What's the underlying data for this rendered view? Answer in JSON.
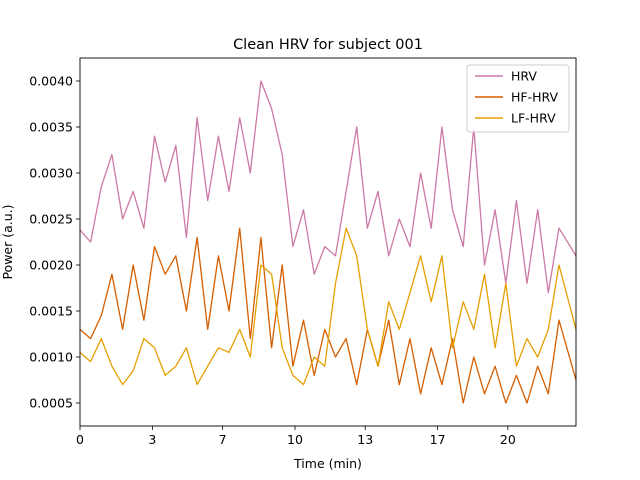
{
  "chart_data": {
    "type": "line",
    "title": "Clean HRV for subject 001",
    "xlabel": "Time (min)",
    "ylabel": "Power (a.u.)",
    "xlim": [
      0,
      23.3
    ],
    "ylim": [
      0.00025,
      0.00425
    ],
    "x_ticks": [
      0,
      3.4,
      6.7,
      10.1,
      13.4,
      16.8,
      20.1
    ],
    "x_tick_labels": [
      "0",
      "3",
      "7",
      "10",
      "13",
      "17",
      "20"
    ],
    "y_ticks": [
      0.0005,
      0.001,
      0.0015,
      0.002,
      0.0025,
      0.003,
      0.0035,
      0.004
    ],
    "y_tick_labels": [
      "0.0005",
      "0.0010",
      "0.0015",
      "0.0020",
      "0.0025",
      "0.0030",
      "0.0035",
      "0.0040"
    ],
    "grid": false,
    "legend_position": "top-right",
    "x": [
      0,
      0.5,
      1,
      1.5,
      2,
      2.5,
      3,
      3.5,
      4,
      4.5,
      5,
      5.5,
      6,
      6.5,
      7,
      7.5,
      8,
      8.5,
      9,
      9.5,
      10,
      10.5,
      11,
      11.5,
      12,
      12.5,
      13,
      13.5,
      14,
      14.5,
      15,
      15.5,
      16,
      16.5,
      17,
      17.5,
      18,
      18.5,
      19,
      19.5,
      20,
      20.5,
      21,
      21.5,
      22,
      22.5,
      23.3
    ],
    "series": [
      {
        "name": "HRV",
        "color": "#cc79a7",
        "values": [
          0.00238,
          0.00225,
          0.00285,
          0.0032,
          0.0025,
          0.0028,
          0.0024,
          0.0034,
          0.0029,
          0.0033,
          0.0023,
          0.0036,
          0.0027,
          0.0034,
          0.0028,
          0.0036,
          0.003,
          0.004,
          0.0037,
          0.0032,
          0.0022,
          0.0026,
          0.0019,
          0.0022,
          0.0021,
          0.0028,
          0.0035,
          0.0024,
          0.0028,
          0.0021,
          0.0025,
          0.0022,
          0.003,
          0.0024,
          0.0035,
          0.0026,
          0.0022,
          0.0035,
          0.002,
          0.0026,
          0.0018,
          0.0027,
          0.0018,
          0.0026,
          0.0017,
          0.0024,
          0.0021
        ]
      },
      {
        "name": "HF-HRV",
        "color": "#d55e00",
        "values": [
          0.0013,
          0.0012,
          0.00145,
          0.0019,
          0.0013,
          0.002,
          0.0014,
          0.0022,
          0.0019,
          0.0021,
          0.0015,
          0.0023,
          0.0013,
          0.0021,
          0.0015,
          0.0024,
          0.0012,
          0.0023,
          0.0011,
          0.002,
          0.0009,
          0.0014,
          0.0008,
          0.0013,
          0.001,
          0.0012,
          0.0007,
          0.0013,
          0.0009,
          0.0014,
          0.0007,
          0.0012,
          0.0006,
          0.0011,
          0.0007,
          0.0012,
          0.0005,
          0.001,
          0.0006,
          0.0009,
          0.0005,
          0.0008,
          0.0005,
          0.0009,
          0.0006,
          0.0014,
          0.00075
        ]
      },
      {
        "name": "LF-HRV",
        "color": "#e69f00",
        "values": [
          0.00105,
          0.00095,
          0.0012,
          0.0009,
          0.0007,
          0.00085,
          0.0012,
          0.0011,
          0.0008,
          0.0009,
          0.0011,
          0.0007,
          0.0009,
          0.0011,
          0.00105,
          0.0013,
          0.001,
          0.002,
          0.0019,
          0.0011,
          0.0008,
          0.0007,
          0.001,
          0.0009,
          0.0018,
          0.0024,
          0.0021,
          0.0013,
          0.0009,
          0.0016,
          0.0013,
          0.0017,
          0.0021,
          0.0016,
          0.0021,
          0.0011,
          0.0016,
          0.0013,
          0.0019,
          0.0011,
          0.0018,
          0.0009,
          0.0012,
          0.001,
          0.0013,
          0.002,
          0.0013
        ]
      }
    ]
  }
}
